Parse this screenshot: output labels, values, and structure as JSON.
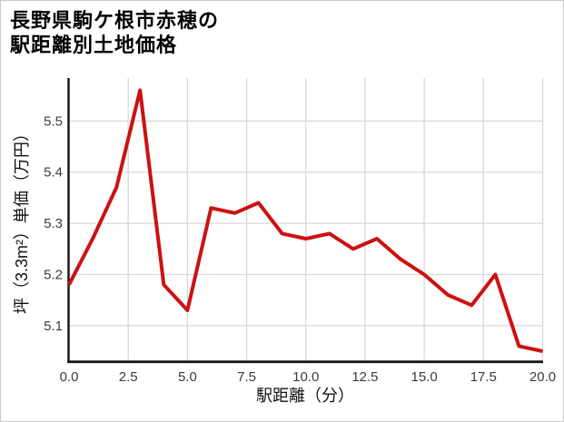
{
  "header": {
    "title_line1": "長野県駒ケ根市赤穂の",
    "title_line2": "駅距離別土地価格"
  },
  "chart_data": {
    "type": "line",
    "title": "長野県駒ケ根市赤穂の駅距離別土地価格",
    "xlabel": "駅距離（分）",
    "ylabel": "坪（3.3m²）単価（万円）",
    "x": [
      0,
      1,
      2,
      3,
      4,
      5,
      6,
      7,
      8,
      9,
      10,
      11,
      12,
      13,
      14,
      15,
      16,
      17,
      18,
      19,
      20
    ],
    "values": [
      5.18,
      5.27,
      5.37,
      5.56,
      5.18,
      5.13,
      5.33,
      5.32,
      5.34,
      5.28,
      5.27,
      5.28,
      5.25,
      5.27,
      5.23,
      5.2,
      5.16,
      5.14,
      5.2,
      5.06,
      5.05
    ],
    "x_ticks": {
      "values": [
        0,
        2.5,
        5,
        7.5,
        10,
        12.5,
        15,
        17.5,
        20
      ],
      "labels": [
        "0.0",
        "2.5",
        "5.0",
        "7.5",
        "10.0",
        "12.5",
        "15.0",
        "17.5",
        "20.0"
      ]
    },
    "y_ticks": {
      "values": [
        5.1,
        5.2,
        5.3,
        5.4,
        5.5
      ],
      "labels": [
        "5.1",
        "5.2",
        "5.3",
        "5.4",
        "5.5"
      ]
    },
    "xlim": [
      0,
      20
    ],
    "ylim": [
      5.03,
      5.584
    ],
    "grid": true,
    "legend": false,
    "line_color": "#cc1111",
    "grid_color": "#d8d8d8",
    "axis_color": "#1a1a1a",
    "tick_label_color": "#3b3b3b"
  }
}
